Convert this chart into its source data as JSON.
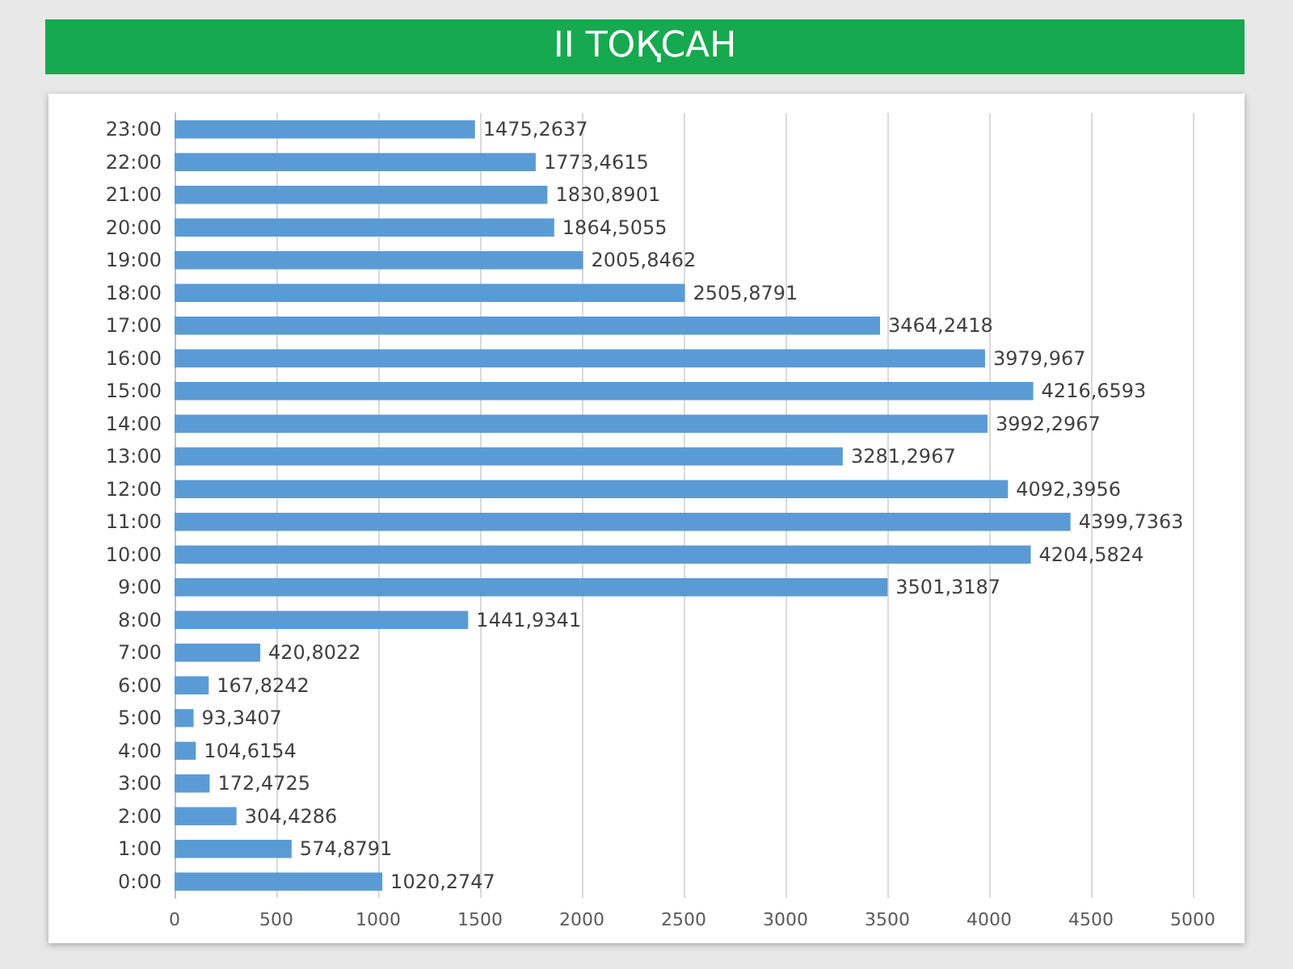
{
  "chart_data": {
    "type": "bar",
    "title": "II ТОҚСАН",
    "orientation": "horizontal",
    "categories": [
      "23:00",
      "22:00",
      "21:00",
      "20:00",
      "19:00",
      "18:00",
      "17:00",
      "16:00",
      "15:00",
      "14:00",
      "13:00",
      "12:00",
      "11:00",
      "10:00",
      "9:00",
      "8:00",
      "7:00",
      "6:00",
      "5:00",
      "4:00",
      "3:00",
      "2:00",
      "1:00",
      "0:00"
    ],
    "values": [
      1475.2637,
      1773.4615,
      1830.8901,
      1864.5055,
      2005.8462,
      2505.8791,
      3464.2418,
      3979.967,
      4216.6593,
      3992.2967,
      3281.2967,
      4092.3956,
      4399.7363,
      4204.5824,
      3501.3187,
      1441.9341,
      420.8022,
      167.8242,
      93.3407,
      104.6154,
      172.4725,
      304.4286,
      574.8791,
      1020.2747
    ],
    "value_labels": [
      "1475,2637",
      "1773,4615",
      "1830,8901",
      "1864,5055",
      "2005,8462",
      "2505,8791",
      "3464,2418",
      "3979,967",
      "4216,6593",
      "3992,2967",
      "3281,2967",
      "4092,3956",
      "4399,7363",
      "4204,5824",
      "3501,3187",
      "1441,9341",
      "420,8022",
      "167,8242",
      "93,3407",
      "104,6154",
      "172,4725",
      "304,4286",
      "574,8791",
      "1020,2747"
    ],
    "color": "#5b9bd5",
    "xlim": [
      0,
      5000
    ],
    "xticks": [
      0,
      500,
      1000,
      1500,
      2000,
      2500,
      3000,
      3500,
      4000,
      4500,
      5000
    ],
    "grid": "x"
  }
}
